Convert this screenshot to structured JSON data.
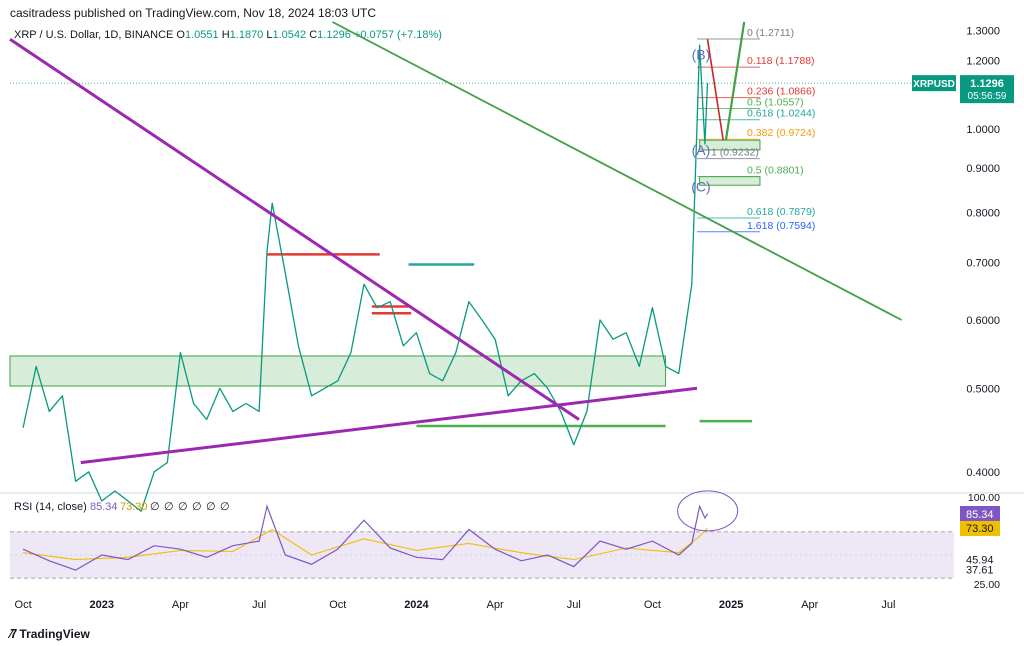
{
  "publisher_line": "casitradess published on TradingView.com, Nov 18, 2024 18:03 UTC",
  "header": {
    "symbol": "XRP / U.S. Dollar, 1D, BINANCE",
    "o_label": "O",
    "o": "1.0551",
    "h_label": "H",
    "h": "1.1870",
    "l_label": "L",
    "l": "1.0542",
    "c_label": "C",
    "c": "1.1296",
    "change": "+0.0757 (+7.18%)"
  },
  "footer": {
    "brand": "TradingView"
  },
  "colors": {
    "up": "#089981",
    "purple": "#9c27b0",
    "green_line": "#43a047",
    "fib_red": "#e53935",
    "fib_teal": "#26a69a",
    "fib_orange": "#f29d0c",
    "fib_blue": "#2962ff",
    "fib_gray": "#787b86",
    "zone_fill": "#c8e6c9",
    "rsi_line": "#7e57c2",
    "rsi_ma": "#f0c000",
    "rsi_band": "#ede7f6"
  },
  "chart_data": [
    {
      "type": "line",
      "title": "XRP / U.S. Dollar, 1D, BINANCE",
      "price_scale": "log",
      "ylim": [
        0.38,
        1.33
      ],
      "y_ticks": [
        "1.3000",
        "1.2000",
        "1.1000",
        "1.0000",
        "0.9000",
        "0.8000",
        "0.7000",
        "0.6000",
        "0.5000",
        "0.4000"
      ],
      "x_ticks": [
        "Oct",
        "2023",
        "Apr",
        "Jul",
        "Oct",
        "2024",
        "Apr",
        "Jul",
        "Oct",
        "2025",
        "Apr",
        "Jul"
      ],
      "x_tick_positions_months": [
        0,
        3,
        6,
        9,
        12,
        15,
        18,
        21,
        24,
        27,
        30,
        33
      ],
      "xlim_months": [
        -0.5,
        35.5
      ],
      "last_price": {
        "symbol": "XRPUSD",
        "value": "1.1296",
        "countdown": "05:56:59",
        "price": 1.1296
      },
      "series": [
        {
          "role": "price",
          "points": [
            [
              0,
              0.45
            ],
            [
              0.5,
              0.53
            ],
            [
              1,
              0.47
            ],
            [
              1.5,
              0.49
            ],
            [
              2,
              0.39
            ],
            [
              2.5,
              0.4
            ],
            [
              3,
              0.37
            ],
            [
              3.5,
              0.38
            ],
            [
              4,
              0.37
            ],
            [
              4.5,
              0.36
            ],
            [
              5,
              0.4
            ],
            [
              5.5,
              0.41
            ],
            [
              6,
              0.55
            ],
            [
              6.5,
              0.48
            ],
            [
              7,
              0.46
            ],
            [
              7.5,
              0.5
            ],
            [
              8,
              0.47
            ],
            [
              8.5,
              0.48
            ],
            [
              9,
              0.47
            ],
            [
              9.3,
              0.72
            ],
            [
              9.5,
              0.82
            ],
            [
              10,
              0.68
            ],
            [
              10.5,
              0.56
            ],
            [
              11,
              0.49
            ],
            [
              11.5,
              0.5
            ],
            [
              12,
              0.51
            ],
            [
              12.5,
              0.55
            ],
            [
              13,
              0.66
            ],
            [
              13.5,
              0.62
            ],
            [
              14,
              0.63
            ],
            [
              14.5,
              0.56
            ],
            [
              15,
              0.58
            ],
            [
              15.5,
              0.52
            ],
            [
              16,
              0.51
            ],
            [
              16.5,
              0.55
            ],
            [
              17,
              0.63
            ],
            [
              17.5,
              0.6
            ],
            [
              18,
              0.57
            ],
            [
              18.5,
              0.49
            ],
            [
              19,
              0.51
            ],
            [
              19.5,
              0.52
            ],
            [
              20,
              0.5
            ],
            [
              20.5,
              0.47
            ],
            [
              21,
              0.43
            ],
            [
              21.5,
              0.47
            ],
            [
              22,
              0.6
            ],
            [
              22.5,
              0.57
            ],
            [
              23,
              0.58
            ],
            [
              23.5,
              0.53
            ],
            [
              24,
              0.62
            ],
            [
              24.5,
              0.53
            ],
            [
              25,
              0.52
            ],
            [
              25.5,
              0.66
            ],
            [
              25.8,
              1.25
            ],
            [
              26,
              0.96
            ],
            [
              26.1,
              1.1296
            ]
          ]
        },
        {
          "role": "support",
          "name": "",
          "points": [
            [
              2.2,
              0.41
            ],
            [
              25.7,
              0.5
            ]
          ]
        },
        {
          "role": "resistance",
          "name": "",
          "points": [
            [
              -0.5,
              1.27
            ],
            [
              21.2,
              0.46
            ]
          ]
        },
        {
          "role": "trend",
          "name": "",
          "points": [
            [
              11.8,
              1.33
            ],
            [
              33.5,
              0.6
            ]
          ]
        },
        {
          "role": "projection",
          "name": "",
          "points": [
            [
              26.8,
              0.97
            ],
            [
              27.5,
              1.33
            ]
          ]
        },
        {
          "role": "projection-down",
          "name": "",
          "points": [
            [
              26.1,
              1.27
            ],
            [
              26.7,
              0.97
            ]
          ]
        }
      ],
      "zones": [
        {
          "x": [
            -0.5,
            24.5
          ],
          "y": [
            0.503,
            0.545
          ]
        },
        {
          "x": [
            25.8,
            28.1
          ],
          "y": [
            0.945,
            0.97
          ]
        },
        {
          "x": [
            25.8,
            28.1
          ],
          "y": [
            0.86,
            0.88
          ]
        }
      ],
      "levels": [
        {
          "x": [
            9.3,
            13.6
          ],
          "y": 0.715,
          "color": "fib_red"
        },
        {
          "x": [
            13.3,
            14.8
          ],
          "y": 0.611,
          "color": "fib_red"
        },
        {
          "x": [
            13.3,
            14.8
          ],
          "y": 0.622,
          "color": "fib_red"
        },
        {
          "x": [
            14.7,
            17.2
          ],
          "y": 0.696,
          "color": "fib_teal"
        },
        {
          "x": [
            15.0,
            24.5
          ],
          "y": 0.452,
          "color": "fib_green"
        },
        {
          "x": [
            25.8,
            27.8
          ],
          "y": 0.458,
          "color": "fib_green"
        }
      ],
      "fib_levels": [
        {
          "label": "0 (1.2711)",
          "price": 1.2711,
          "color": "fib_gray"
        },
        {
          "label": "0.118 (1.1788)",
          "price": 1.1788,
          "color": "fib_red"
        },
        {
          "label": "0.236 (1.0866)",
          "price": 1.0866,
          "color": "fib_red"
        },
        {
          "label": "0.5 (1.0557)",
          "price": 1.0557,
          "color": "fib_green"
        },
        {
          "label": "0.618 (1.0244)",
          "price": 1.0244,
          "color": "fib_teal"
        },
        {
          "label": "0.382 (0.9724)",
          "price": 0.9724,
          "color": "fib_orange"
        },
        {
          "label": "1 (0.9232)",
          "price": 0.9232,
          "color": "fib_gray"
        },
        {
          "label": "0.5 (0.8801)",
          "price": 0.8801,
          "color": "fib_green"
        },
        {
          "label": "0.618 (0.7879)",
          "price": 0.7879,
          "color": "fib_teal"
        },
        {
          "label": "1.618 (0.7594)",
          "price": 0.7594,
          "color": "fib_blue"
        }
      ],
      "annotations": [
        {
          "text": "(B)",
          "x": 25.85,
          "price": 1.22
        },
        {
          "text": "(A)",
          "x": 25.85,
          "price": 0.945
        },
        {
          "text": "(C)",
          "x": 25.85,
          "price": 0.857
        }
      ]
    },
    {
      "type": "line",
      "title": "RSI (14, close)",
      "legend_values": [
        "85.34",
        "73.30",
        "∅",
        "∅",
        "∅",
        "∅",
        "∅",
        "∅"
      ],
      "ylim": [
        25,
        100
      ],
      "y_ticks": [
        "100.00",
        "25.00"
      ],
      "value_badges": [
        {
          "text": "85.34",
          "value": 85.34,
          "style": "rsi"
        },
        {
          "text": "73.30",
          "value": 73.3,
          "style": "ma"
        },
        {
          "text": "45.94",
          "value": 45.94,
          "style": "plain"
        },
        {
          "text": "37.61",
          "value": 37.61,
          "style": "plain"
        }
      ],
      "band": [
        30,
        70
      ],
      "series": [
        {
          "name": "RSI",
          "points": [
            [
              0,
              55
            ],
            [
              1,
              45
            ],
            [
              2,
              37
            ],
            [
              3,
              50
            ],
            [
              4,
              46
            ],
            [
              5,
              58
            ],
            [
              6,
              55
            ],
            [
              7,
              48
            ],
            [
              8,
              58
            ],
            [
              9,
              62
            ],
            [
              9.3,
              92
            ],
            [
              10,
              50
            ],
            [
              11,
              42
            ],
            [
              12,
              55
            ],
            [
              13,
              80
            ],
            [
              14,
              56
            ],
            [
              15,
              48
            ],
            [
              16,
              46
            ],
            [
              17,
              72
            ],
            [
              18,
              55
            ],
            [
              19,
              45
            ],
            [
              20,
              50
            ],
            [
              21,
              40
            ],
            [
              22,
              62
            ],
            [
              23,
              55
            ],
            [
              24,
              62
            ],
            [
              25,
              50
            ],
            [
              25.5,
              60
            ],
            [
              25.8,
              92
            ],
            [
              26,
              82
            ],
            [
              26.1,
              85.34
            ]
          ]
        },
        {
          "name": "RSI-based MA",
          "points": [
            [
              0,
              52
            ],
            [
              2,
              46
            ],
            [
              4,
              48
            ],
            [
              6,
              54
            ],
            [
              8,
              53
            ],
            [
              9.5,
              72
            ],
            [
              11,
              50
            ],
            [
              13,
              64
            ],
            [
              15,
              54
            ],
            [
              17,
              60
            ],
            [
              19,
              52
            ],
            [
              21,
              46
            ],
            [
              23,
              56
            ],
            [
              25,
              52
            ],
            [
              25.8,
              66
            ],
            [
              26.1,
              73.3
            ]
          ]
        }
      ]
    }
  ]
}
